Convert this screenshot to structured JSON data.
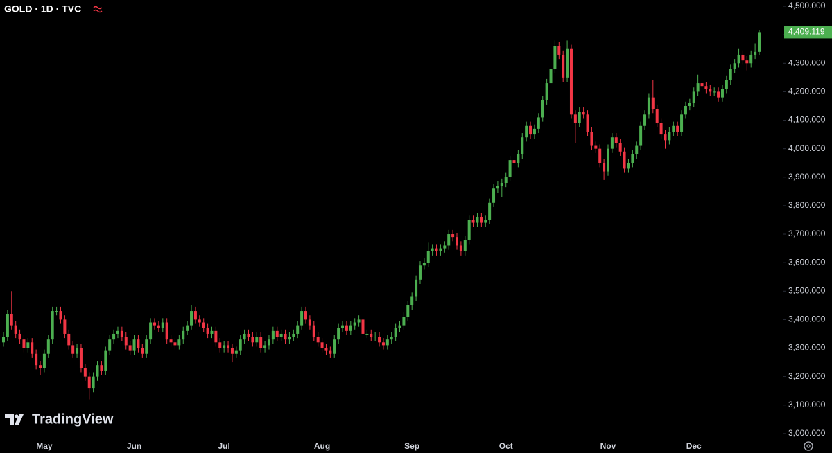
{
  "chart_data": {
    "type": "candlestick",
    "title": "GOLD · 1D · TVC",
    "watermark": "TradingView",
    "up_color": "#4caf50",
    "down_color": "#f23645",
    "ylim": [
      2990,
      4522
    ],
    "yticks": [
      {
        "value": 3000,
        "label": "3,000.000"
      },
      {
        "value": 3100,
        "label": "3,100.000"
      },
      {
        "value": 3200,
        "label": "3,200.000"
      },
      {
        "value": 3300,
        "label": "3,300.000"
      },
      {
        "value": 3400,
        "label": "3,400.000"
      },
      {
        "value": 3500,
        "label": "3,500.000"
      },
      {
        "value": 3600,
        "label": "3,600.000"
      },
      {
        "value": 3700,
        "label": "3,700.000"
      },
      {
        "value": 3800,
        "label": "3,800.000"
      },
      {
        "value": 3900,
        "label": "3,900.000"
      },
      {
        "value": 4000,
        "label": "4,000.000"
      },
      {
        "value": 4100,
        "label": "4,100.000"
      },
      {
        "value": 4200,
        "label": "4,200.000"
      },
      {
        "value": 4300,
        "label": "4,300.000"
      },
      {
        "value": 4400,
        "label": "4,400.000"
      },
      {
        "value": 4500,
        "label": "4,500.000"
      }
    ],
    "last_price": {
      "value": 4409.119,
      "label": "4,409.119"
    },
    "categories": [
      null,
      null,
      null,
      null,
      null,
      null,
      null,
      null,
      null,
      null,
      "May",
      null,
      null,
      null,
      null,
      null,
      null,
      null,
      null,
      null,
      null,
      null,
      null,
      null,
      null,
      null,
      null,
      null,
      null,
      null,
      null,
      null,
      "Jun",
      null,
      null,
      null,
      null,
      null,
      null,
      null,
      null,
      null,
      null,
      null,
      null,
      null,
      null,
      null,
      null,
      null,
      null,
      null,
      null,
      null,
      "Jul",
      null,
      null,
      null,
      null,
      null,
      null,
      null,
      null,
      null,
      null,
      null,
      null,
      null,
      null,
      null,
      null,
      null,
      null,
      null,
      null,
      null,
      null,
      null,
      "Aug",
      null,
      null,
      null,
      null,
      null,
      null,
      null,
      null,
      null,
      null,
      null,
      null,
      null,
      null,
      null,
      null,
      null,
      null,
      null,
      null,
      null,
      "Sep",
      null,
      null,
      null,
      null,
      null,
      null,
      null,
      null,
      null,
      null,
      null,
      null,
      null,
      null,
      null,
      null,
      null,
      null,
      null,
      null,
      null,
      null,
      "Oct",
      null,
      null,
      null,
      null,
      null,
      null,
      null,
      null,
      null,
      null,
      null,
      null,
      null,
      null,
      null,
      null,
      null,
      null,
      null,
      null,
      null,
      null,
      null,
      null,
      "Nov",
      null,
      null,
      null,
      null,
      null,
      null,
      null,
      null,
      null,
      null,
      null,
      null,
      null,
      null,
      null,
      null,
      null,
      null,
      null,
      null,
      "Dec",
      null,
      null,
      null,
      null,
      null,
      null,
      null,
      null,
      null,
      null,
      null,
      null,
      null,
      null,
      null,
      null
    ],
    "open": [
      3320,
      3340,
      3420,
      3380,
      3350,
      3330,
      3300,
      3320,
      3280,
      3240,
      3230,
      3280,
      3330,
      3430,
      3430,
      3400,
      3350,
      3310,
      3280,
      3300,
      3230,
      3200,
      3160,
      3200,
      3240,
      3220,
      3290,
      3330,
      3350,
      3360,
      3340,
      3310,
      3290,
      3330,
      3300,
      3280,
      3330,
      3390,
      3380,
      3370,
      3390,
      3330,
      3320,
      3310,
      3330,
      3360,
      3380,
      3430,
      3400,
      3390,
      3370,
      3350,
      3360,
      3320,
      3300,
      3310,
      3300,
      3280,
      3290,
      3330,
      3350,
      3340,
      3320,
      3340,
      3300,
      3310,
      3330,
      3360,
      3340,
      3350,
      3330,
      3340,
      3350,
      3380,
      3430,
      3400,
      3380,
      3340,
      3320,
      3300,
      3290,
      3280,
      3330,
      3370,
      3380,
      3360,
      3380,
      3390,
      3400,
      3350,
      3350,
      3340,
      3340,
      3320,
      3310,
      3330,
      3340,
      3370,
      3380,
      3410,
      3450,
      3480,
      3540,
      3590,
      3600,
      3640,
      3650,
      3640,
      3650,
      3660,
      3700,
      3690,
      3660,
      3640,
      3680,
      3750,
      3740,
      3760,
      3740,
      3750,
      3810,
      3860,
      3870,
      3880,
      3900,
      3960,
      3950,
      3980,
      4040,
      4080,
      4050,
      4070,
      4110,
      4170,
      4230,
      4280,
      4360,
      4330,
      4250,
      4350,
      4120,
      4090,
      4130,
      4120,
      4060,
      4010,
      4000,
      3950,
      3920,
      4000,
      4040,
      4020,
      3990,
      3930,
      3950,
      3980,
      4010,
      4080,
      4120,
      4180,
      4140,
      4090,
      4050,
      4030,
      4060,
      4080,
      4060,
      4120,
      4150,
      4160,
      4200,
      4230,
      4220,
      4210,
      4200,
      4200,
      4180,
      4210,
      4240,
      4280,
      4300,
      4330,
      4310,
      4300,
      4330,
      4340
    ],
    "high": [
      3355,
      3435,
      3500,
      3395,
      3365,
      3345,
      3335,
      3335,
      3295,
      3255,
      3295,
      3345,
      3445,
      3445,
      3445,
      3415,
      3365,
      3325,
      3315,
      3315,
      3245,
      3215,
      3215,
      3255,
      3255,
      3305,
      3345,
      3365,
      3375,
      3375,
      3355,
      3325,
      3345,
      3345,
      3315,
      3345,
      3405,
      3405,
      3395,
      3405,
      3405,
      3345,
      3335,
      3345,
      3375,
      3395,
      3450,
      3445,
      3415,
      3405,
      3385,
      3375,
      3375,
      3335,
      3325,
      3325,
      3315,
      3305,
      3345,
      3365,
      3365,
      3355,
      3355,
      3355,
      3325,
      3345,
      3375,
      3375,
      3365,
      3365,
      3355,
      3365,
      3395,
      3445,
      3445,
      3415,
      3395,
      3355,
      3335,
      3315,
      3305,
      3345,
      3385,
      3395,
      3395,
      3395,
      3405,
      3415,
      3415,
      3365,
      3365,
      3355,
      3355,
      3335,
      3345,
      3355,
      3385,
      3395,
      3425,
      3465,
      3495,
      3555,
      3605,
      3615,
      3670,
      3665,
      3665,
      3665,
      3675,
      3715,
      3715,
      3705,
      3675,
      3695,
      3765,
      3765,
      3775,
      3775,
      3765,
      3825,
      3875,
      3885,
      3895,
      3915,
      3975,
      3975,
      3995,
      4055,
      4095,
      4095,
      4085,
      4125,
      4185,
      4245,
      4295,
      4380,
      4375,
      4345,
      4380,
      4365,
      4135,
      4145,
      4145,
      4135,
      4075,
      4025,
      4015,
      3965,
      4015,
      4055,
      4055,
      4035,
      4005,
      3965,
      3995,
      4025,
      4095,
      4135,
      4195,
      4240,
      4155,
      4105,
      4065,
      4075,
      4095,
      4095,
      4135,
      4165,
      4175,
      4215,
      4260,
      4245,
      4235,
      4225,
      4215,
      4215,
      4225,
      4255,
      4295,
      4315,
      4350,
      4345,
      4325,
      4345,
      4370,
      4415
    ],
    "low": [
      3305,
      3325,
      3365,
      3335,
      3315,
      3285,
      3285,
      3265,
      3225,
      3205,
      3215,
      3265,
      3315,
      3415,
      3385,
      3335,
      3295,
      3265,
      3265,
      3215,
      3185,
      3120,
      3145,
      3185,
      3205,
      3205,
      3275,
      3315,
      3335,
      3325,
      3295,
      3275,
      3275,
      3285,
      3265,
      3265,
      3315,
      3365,
      3355,
      3355,
      3315,
      3305,
      3295,
      3295,
      3315,
      3345,
      3365,
      3385,
      3375,
      3355,
      3335,
      3335,
      3305,
      3285,
      3285,
      3285,
      3250,
      3265,
      3275,
      3315,
      3325,
      3305,
      3305,
      3285,
      3285,
      3295,
      3315,
      3325,
      3325,
      3315,
      3315,
      3325,
      3335,
      3365,
      3385,
      3365,
      3325,
      3305,
      3285,
      3275,
      3265,
      3265,
      3315,
      3355,
      3345,
      3345,
      3365,
      3375,
      3335,
      3335,
      3325,
      3325,
      3305,
      3295,
      3295,
      3315,
      3325,
      3355,
      3365,
      3395,
      3435,
      3465,
      3525,
      3575,
      3585,
      3625,
      3625,
      3625,
      3635,
      3645,
      3675,
      3645,
      3625,
      3625,
      3665,
      3725,
      3725,
      3725,
      3725,
      3735,
      3795,
      3845,
      3830,
      3865,
      3885,
      3935,
      3935,
      3965,
      4025,
      4035,
      4035,
      4055,
      4095,
      4155,
      4215,
      4265,
      4315,
      4235,
      4235,
      4105,
      4020,
      4075,
      4105,
      4045,
      3995,
      3985,
      3935,
      3890,
      3905,
      3985,
      4005,
      3975,
      3915,
      3915,
      3935,
      3965,
      3995,
      4065,
      4105,
      4125,
      4075,
      4035,
      4000,
      4015,
      4045,
      4045,
      4045,
      4105,
      4135,
      4145,
      4185,
      4205,
      4195,
      4185,
      4185,
      4165,
      4165,
      4195,
      4225,
      4265,
      4285,
      4295,
      4275,
      4285,
      4315,
      4330
    ],
    "close": [
      3340,
      3420,
      3380,
      3350,
      3330,
      3300,
      3320,
      3280,
      3240,
      3230,
      3280,
      3330,
      3430,
      3430,
      3400,
      3350,
      3310,
      3280,
      3300,
      3230,
      3200,
      3160,
      3200,
      3240,
      3220,
      3290,
      3330,
      3350,
      3360,
      3340,
      3310,
      3290,
      3330,
      3300,
      3280,
      3330,
      3390,
      3380,
      3370,
      3390,
      3330,
      3320,
      3310,
      3330,
      3360,
      3380,
      3430,
      3400,
      3390,
      3370,
      3350,
      3360,
      3320,
      3300,
      3310,
      3300,
      3280,
      3290,
      3330,
      3350,
      3340,
      3320,
      3340,
      3300,
      3310,
      3330,
      3360,
      3340,
      3350,
      3330,
      3340,
      3350,
      3380,
      3430,
      3400,
      3380,
      3340,
      3320,
      3300,
      3290,
      3280,
      3330,
      3370,
      3380,
      3360,
      3380,
      3390,
      3400,
      3350,
      3350,
      3340,
      3340,
      3320,
      3310,
      3330,
      3340,
      3370,
      3380,
      3410,
      3450,
      3480,
      3540,
      3590,
      3600,
      3640,
      3650,
      3640,
      3650,
      3660,
      3700,
      3690,
      3660,
      3640,
      3680,
      3750,
      3740,
      3760,
      3740,
      3750,
      3810,
      3860,
      3870,
      3880,
      3900,
      3960,
      3950,
      3980,
      4040,
      4080,
      4050,
      4070,
      4110,
      4170,
      4230,
      4280,
      4360,
      4330,
      4250,
      4350,
      4120,
      4090,
      4130,
      4120,
      4060,
      4010,
      4000,
      3950,
      3920,
      4000,
      4040,
      4020,
      3990,
      3930,
      3950,
      3980,
      4010,
      4080,
      4120,
      4180,
      4140,
      4090,
      4050,
      4030,
      4060,
      4080,
      4060,
      4120,
      4150,
      4160,
      4200,
      4230,
      4220,
      4210,
      4200,
      4200,
      4180,
      4210,
      4240,
      4280,
      4300,
      4330,
      4310,
      4300,
      4330,
      4340,
      4409.119
    ]
  }
}
